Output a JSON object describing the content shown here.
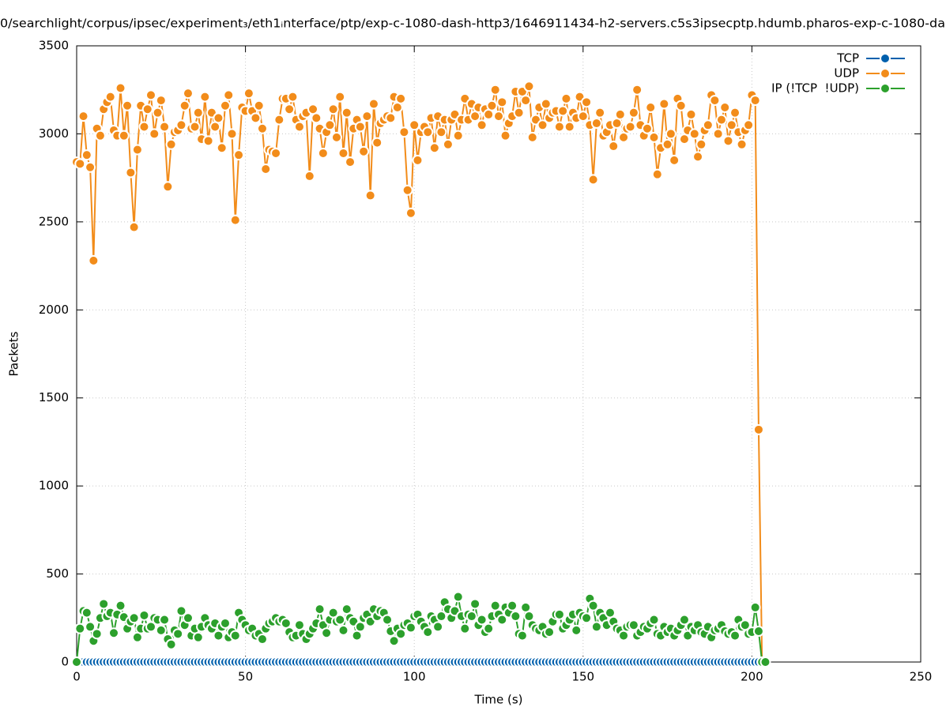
{
  "chart_data": {
    "type": "line",
    "title": "0/searchlight/corpus/ipsec/experiment₃/eth1ᵢnterface/ptp/exp-c-1080-dash-http3/1646911434-h2-servers.c5s3ipsecptp.hdumb.pharos-exp-c-1080-da",
    "xlabel": "Time (s)",
    "ylabel": "Packets",
    "xlim": [
      0,
      250
    ],
    "xticks": [
      0,
      50,
      100,
      150,
      200,
      250
    ],
    "ylim": [
      0,
      3500
    ],
    "yticks": [
      0,
      500,
      1000,
      1500,
      2000,
      2500,
      3000,
      3500
    ],
    "grid": true,
    "legend": "top-right",
    "x": [
      0,
      1,
      2,
      3,
      4,
      5,
      6,
      7,
      8,
      9,
      10,
      11,
      12,
      13,
      14,
      15,
      16,
      17,
      18,
      19,
      20,
      21,
      22,
      23,
      24,
      25,
      26,
      27,
      28,
      29,
      30,
      31,
      32,
      33,
      34,
      35,
      36,
      37,
      38,
      39,
      40,
      41,
      42,
      43,
      44,
      45,
      46,
      47,
      48,
      49,
      50,
      51,
      52,
      53,
      54,
      55,
      56,
      57,
      58,
      59,
      60,
      61,
      62,
      63,
      64,
      65,
      66,
      67,
      68,
      69,
      70,
      71,
      72,
      73,
      74,
      75,
      76,
      77,
      78,
      79,
      80,
      81,
      82,
      83,
      84,
      85,
      86,
      87,
      88,
      89,
      90,
      91,
      92,
      93,
      94,
      95,
      96,
      97,
      98,
      99,
      100,
      101,
      102,
      103,
      104,
      105,
      106,
      107,
      108,
      109,
      110,
      111,
      112,
      113,
      114,
      115,
      116,
      117,
      118,
      119,
      120,
      121,
      122,
      123,
      124,
      125,
      126,
      127,
      128,
      129,
      130,
      131,
      132,
      133,
      134,
      135,
      136,
      137,
      138,
      139,
      140,
      141,
      142,
      143,
      144,
      145,
      146,
      147,
      148,
      149,
      150,
      151,
      152,
      153,
      154,
      155,
      156,
      157,
      158,
      159,
      160,
      161,
      162,
      163,
      164,
      165,
      166,
      167,
      168,
      169,
      170,
      171,
      172,
      173,
      174,
      175,
      176,
      177,
      178,
      179,
      180,
      181,
      182,
      183,
      184,
      185,
      186,
      187,
      188,
      189,
      190,
      191,
      192,
      193,
      194,
      195,
      196,
      197,
      198,
      199,
      200,
      201,
      202,
      203,
      204
    ],
    "series": [
      {
        "name": "TCP",
        "color": "#0060ad",
        "values": [
          0,
          0,
          0,
          0,
          0,
          0,
          0,
          0,
          0,
          0,
          0,
          0,
          0,
          0,
          0,
          0,
          0,
          0,
          0,
          0,
          0,
          0,
          0,
          0,
          0,
          0,
          0,
          0,
          0,
          0,
          0,
          0,
          0,
          0,
          0,
          0,
          0,
          0,
          0,
          0,
          0,
          0,
          0,
          0,
          0,
          0,
          0,
          0,
          0,
          0,
          0,
          0,
          0,
          0,
          0,
          0,
          0,
          0,
          0,
          0,
          0,
          0,
          0,
          0,
          0,
          0,
          0,
          0,
          0,
          0,
          0,
          0,
          0,
          0,
          0,
          0,
          0,
          0,
          0,
          0,
          0,
          0,
          0,
          0,
          0,
          0,
          0,
          0,
          0,
          0,
          0,
          0,
          0,
          0,
          0,
          0,
          0,
          0,
          0,
          0,
          0,
          0,
          0,
          0,
          0,
          0,
          0,
          0,
          0,
          0,
          0,
          0,
          0,
          0,
          0,
          0,
          0,
          0,
          0,
          0,
          0,
          0,
          0,
          0,
          0,
          0,
          0,
          0,
          0,
          0,
          0,
          0,
          0,
          0,
          0,
          0,
          0,
          0,
          0,
          0,
          0,
          0,
          0,
          0,
          0,
          0,
          0,
          0,
          0,
          0,
          0,
          0,
          0,
          0,
          0,
          0,
          0,
          0,
          0,
          0,
          0,
          0,
          0,
          0,
          0,
          0,
          0,
          0,
          0,
          0,
          0,
          0,
          0,
          0,
          0,
          0,
          0,
          0,
          0,
          0,
          0,
          0,
          0,
          0,
          0,
          0,
          0,
          0,
          0,
          0,
          0,
          0,
          0,
          0,
          0,
          0,
          0,
          0,
          0,
          0,
          0,
          0,
          0,
          0,
          0
        ]
      },
      {
        "name": "UDP",
        "color": "#f28c1a",
        "values": [
          2840,
          2830,
          3100,
          2880,
          2810,
          2280,
          3030,
          2990,
          3140,
          3180,
          3210,
          3020,
          2990,
          3260,
          2990,
          3160,
          2780,
          2470,
          2910,
          3160,
          3040,
          3140,
          3220,
          3000,
          3120,
          3190,
          3040,
          2700,
          2940,
          3010,
          3020,
          3050,
          3160,
          3230,
          3030,
          3040,
          3120,
          2970,
          3210,
          2960,
          3120,
          3040,
          3090,
          2920,
          3160,
          3220,
          3000,
          2510,
          2880,
          3150,
          3130,
          3230,
          3130,
          3090,
          3160,
          3030,
          2800,
          2910,
          2900,
          2890,
          3080,
          3200,
          3200,
          3140,
          3210,
          3080,
          3040,
          3100,
          3120,
          2760,
          3140,
          3090,
          3030,
          2890,
          3010,
          3050,
          3140,
          2980,
          3210,
          2890,
          3120,
          2840,
          3030,
          3080,
          3040,
          2900,
          3100,
          2650,
          3170,
          2950,
          3060,
          3080,
          3100,
          3090,
          3210,
          3150,
          3200,
          3010,
          2680,
          2550,
          3050,
          2850,
          3010,
          3040,
          3010,
          3090,
          2920,
          3100,
          3010,
          3080,
          2940,
          3080,
          3110,
          2990,
          3080,
          3200,
          3080,
          3170,
          3100,
          3150,
          3050,
          3140,
          3110,
          3160,
          3250,
          3100,
          3180,
          2990,
          3060,
          3100,
          3240,
          3120,
          3240,
          3190,
          3270,
          2980,
          3080,
          3150,
          3050,
          3170,
          3090,
          3120,
          3130,
          3040,
          3130,
          3200,
          3040,
          3120,
          3090,
          3210,
          3100,
          3180,
          3050,
          2740,
          3060,
          3120,
          2990,
          3010,
          3050,
          2930,
          3060,
          3110,
          2980,
          3030,
          3040,
          3120,
          3250,
          3050,
          2990,
          3030,
          3150,
          2980,
          2770,
          2920,
          3170,
          2940,
          3000,
          2850,
          3200,
          3160,
          2970,
          3020,
          3110,
          3000,
          2870,
          2940,
          3020,
          3050,
          3220,
          3190,
          3000,
          3080,
          3150,
          2960,
          3050,
          3120,
          3010,
          2940,
          3020,
          3050,
          3220,
          3190,
          1320,
          0,
          0
        ]
      },
      {
        "name": "IP (!TCP  !UDP)",
        "color": "#2ca02c",
        "values": [
          0,
          190,
          290,
          280,
          200,
          120,
          160,
          250,
          330,
          260,
          280,
          165,
          270,
          320,
          255,
          190,
          230,
          250,
          140,
          190,
          265,
          190,
          200,
          250,
          240,
          180,
          240,
          130,
          100,
          180,
          160,
          290,
          210,
          250,
          150,
          190,
          140,
          200,
          250,
          210,
          190,
          220,
          150,
          200,
          220,
          140,
          170,
          150,
          280,
          240,
          210,
          180,
          190,
          150,
          160,
          130,
          190,
          220,
          230,
          250,
          230,
          240,
          220,
          170,
          140,
          150,
          210,
          160,
          130,
          160,
          190,
          220,
          300,
          210,
          165,
          240,
          280,
          230,
          240,
          180,
          300,
          250,
          230,
          150,
          200,
          250,
          270,
          230,
          300,
          260,
          290,
          280,
          240,
          175,
          120,
          190,
          160,
          210,
          220,
          195,
          260,
          270,
          230,
          200,
          170,
          260,
          240,
          200,
          260,
          340,
          300,
          250,
          290,
          370,
          260,
          190,
          270,
          260,
          330,
          210,
          240,
          170,
          190,
          260,
          320,
          270,
          240,
          310,
          280,
          320,
          260,
          160,
          150,
          310,
          260,
          210,
          190,
          180,
          200,
          160,
          170,
          230,
          270,
          270,
          190,
          210,
          240,
          270,
          180,
          280,
          260,
          250,
          360,
          320,
          200,
          280,
          250,
          210,
          280,
          230,
          190,
          180,
          150,
          200,
          210,
          210,
          150,
          170,
          200,
          190,
          220,
          240,
          160,
          150,
          200,
          170,
          190,
          150,
          180,
          210,
          240,
          150,
          200,
          180,
          210,
          170,
          160,
          200,
          140,
          180,
          190,
          210,
          175,
          160,
          170,
          150,
          240,
          200,
          210,
          160,
          170,
          310,
          175,
          0,
          0
        ]
      }
    ]
  }
}
